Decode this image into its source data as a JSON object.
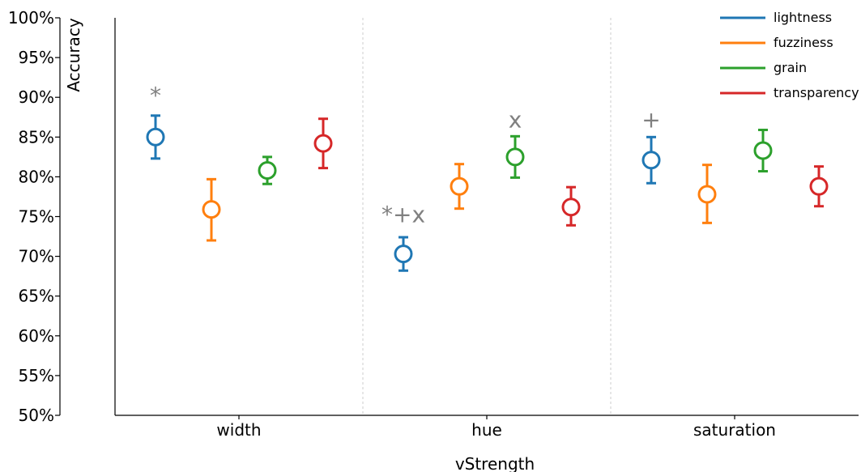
{
  "chart_data": {
    "type": "scatter",
    "title": "",
    "xlabel": "vStrength",
    "ylabel": "Accuracy",
    "ylim": [
      50,
      100
    ],
    "yticks": [
      50,
      55,
      60,
      65,
      70,
      75,
      80,
      85,
      90,
      95,
      100
    ],
    "ytick_format": "%",
    "grid": false,
    "legend_placement": "top-right",
    "categories": [
      "width",
      "hue",
      "saturation"
    ],
    "series": [
      {
        "name": "lightness",
        "color": "#1f77b4",
        "values": [
          85.0,
          70.3,
          82.1
        ],
        "lower": [
          82.3,
          68.2,
          79.2
        ],
        "upper": [
          87.7,
          72.4,
          85.0
        ]
      },
      {
        "name": "fuzziness",
        "color": "#ff7f0e",
        "values": [
          75.9,
          78.8,
          77.8
        ],
        "lower": [
          72.0,
          76.0,
          74.2
        ],
        "upper": [
          79.7,
          81.6,
          81.5
        ]
      },
      {
        "name": "grain",
        "color": "#2ca02c",
        "values": [
          80.8,
          82.5,
          83.3
        ],
        "lower": [
          79.1,
          79.9,
          80.7
        ],
        "upper": [
          82.5,
          85.1,
          85.9
        ]
      },
      {
        "name": "transparency",
        "color": "#d62728",
        "values": [
          84.2,
          76.2,
          78.8
        ],
        "lower": [
          81.1,
          73.9,
          76.3
        ],
        "upper": [
          87.3,
          78.7,
          81.3
        ]
      }
    ],
    "annotations": [
      {
        "category": "width",
        "series": "lightness",
        "text": "*",
        "y": 90.3
      },
      {
        "category": "hue",
        "series": "lightness",
        "text": "*+x",
        "y": 75.3
      },
      {
        "category": "hue",
        "series": "grain",
        "text": "x",
        "y": 87.2
      },
      {
        "category": "saturation",
        "series": "lightness",
        "text": "+",
        "y": 87.2
      }
    ]
  }
}
